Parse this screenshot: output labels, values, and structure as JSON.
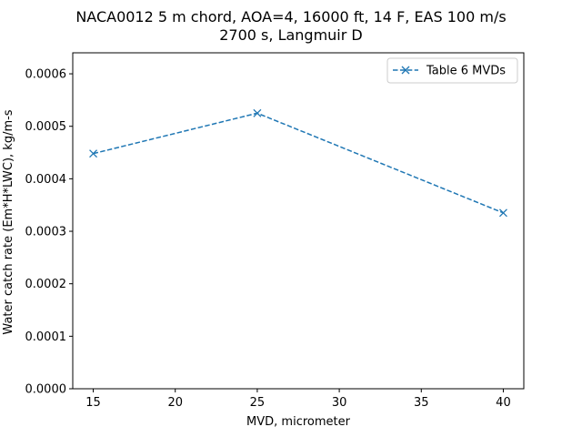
{
  "chart_data": {
    "type": "line",
    "title_line1": "NACA0012 5 m chord, AOA=4, 16000 ft, 14 F, EAS 100 m/s",
    "title_line2": "2700 s, Langmuir D",
    "xlabel": "MVD, micrometer",
    "ylabel": "Water catch rate (Em*H*LWC), kg/m-s",
    "xlim": [
      13.75,
      41.25
    ],
    "ylim": [
      0,
      0.00064
    ],
    "x_ticks": [
      15,
      20,
      25,
      30,
      35,
      40
    ],
    "x_tick_labels": [
      "15",
      "20",
      "25",
      "30",
      "35",
      "40"
    ],
    "y_ticks": [
      0,
      0.0001,
      0.0002,
      0.0003,
      0.0004,
      0.0005,
      0.0006
    ],
    "y_tick_labels": [
      "0.0000",
      "0.0001",
      "0.0002",
      "0.0003",
      "0.0004",
      "0.0005",
      "0.0006"
    ],
    "grid": false,
    "legend_placement": "top-right",
    "series": [
      {
        "name": "Table 6 MVDs",
        "color": "#1f77b4",
        "line_style": "dashed",
        "marker": "x",
        "x": [
          15,
          25,
          40
        ],
        "y": [
          0.000448,
          0.000525,
          0.000335
        ]
      }
    ]
  }
}
